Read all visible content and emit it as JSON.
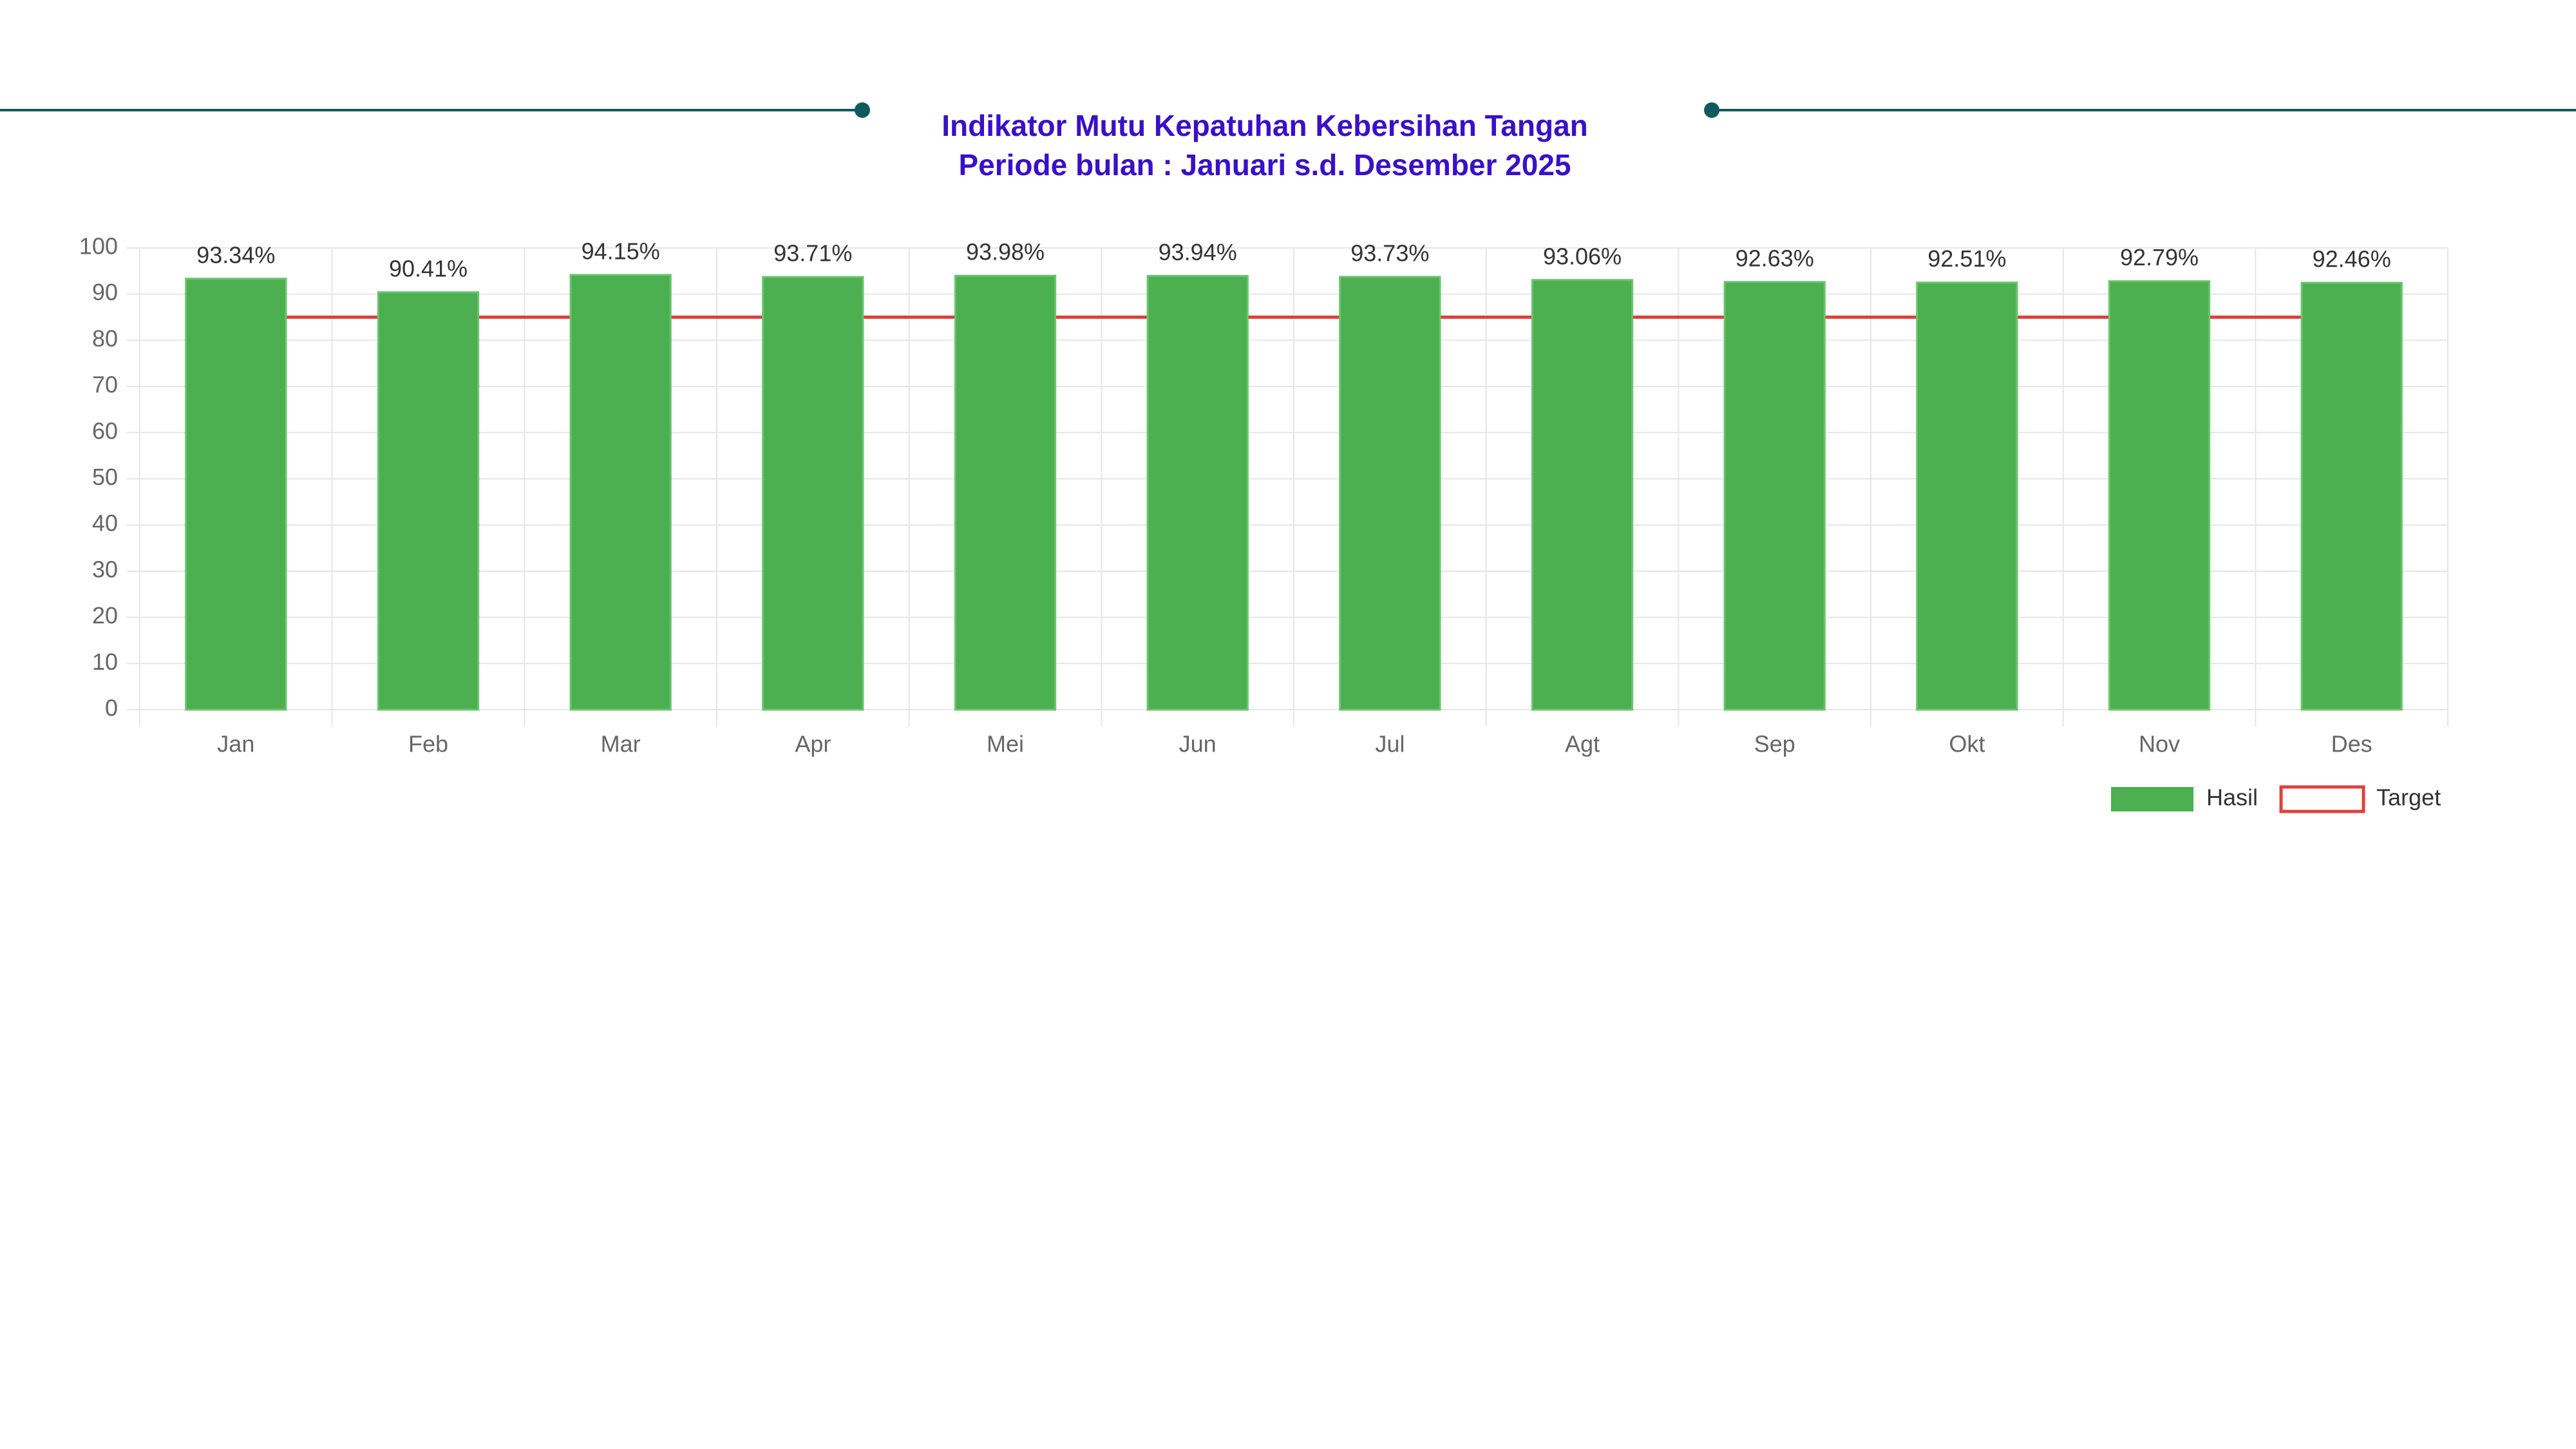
{
  "chart_data": {
    "type": "bar",
    "title": "Indikator Mutu Kepatuhan Kebersihan Tangan",
    "subtitle": "Periode bulan : Januari s.d. Desember 2025",
    "categories": [
      "Jan",
      "Feb",
      "Mar",
      "Apr",
      "Mei",
      "Jun",
      "Jul",
      "Agt",
      "Sep",
      "Okt",
      "Nov",
      "Des"
    ],
    "series": [
      {
        "name": "Hasil",
        "type": "bar",
        "color": "#4caf50",
        "values": [
          93.34,
          90.41,
          94.15,
          93.71,
          93.98,
          93.94,
          93.73,
          93.06,
          92.63,
          92.51,
          92.79,
          92.46
        ],
        "value_labels": [
          "93.34%",
          "90.41%",
          "94.15%",
          "93.71%",
          "93.98%",
          "93.94%",
          "93.73%",
          "93.06%",
          "92.63%",
          "92.51%",
          "92.79%",
          "92.46%"
        ]
      },
      {
        "name": "Target",
        "type": "line",
        "color": "#e0403c",
        "values": [
          85,
          85,
          85,
          85,
          85,
          85,
          85,
          85,
          85,
          85,
          85,
          85
        ]
      }
    ],
    "ylim": [
      0,
      100
    ],
    "yticks": [
      0,
      10,
      20,
      30,
      40,
      50,
      60,
      70,
      80,
      90,
      100
    ],
    "grid": true,
    "legend": "bottom-right"
  }
}
